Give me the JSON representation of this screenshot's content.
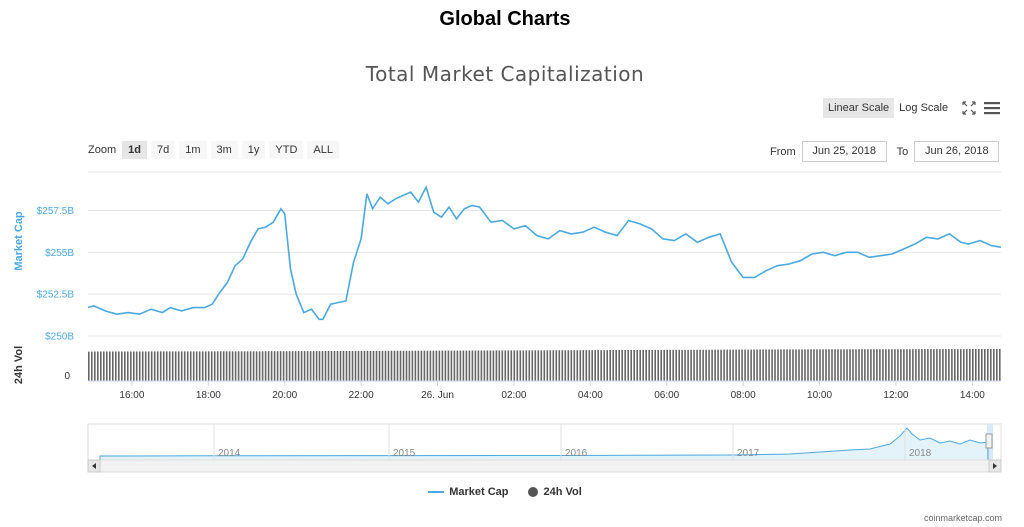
{
  "page": {
    "title": "Global Charts"
  },
  "chart_data": {
    "type": "line",
    "title": "Total Market Capitalization",
    "scale_options": [
      "Linear Scale",
      "Log Scale"
    ],
    "active_scale": "Linear Scale",
    "zoom": {
      "label": "Zoom",
      "options": [
        "1d",
        "7d",
        "1m",
        "3m",
        "1y",
        "YTD",
        "ALL"
      ],
      "active": "1d"
    },
    "range": {
      "from_label": "From",
      "from": "Jun 25, 2018",
      "to_label": "To",
      "to": "Jun 26, 2018"
    },
    "y_axis": {
      "label": "Market Cap",
      "ticks": [
        "$250B",
        "$252.5B",
        "$255B",
        "$257.5B"
      ],
      "tick_values": [
        250,
        252.5,
        255,
        257.5
      ],
      "ylim": [
        250,
        259.8
      ]
    },
    "vol_axis": {
      "label": "24h Vol",
      "ticks": [
        "0"
      ]
    },
    "x_axis": {
      "ticks": [
        "16:00",
        "18:00",
        "20:00",
        "22:00",
        "26. Jun",
        "02:00",
        "04:00",
        "06:00",
        "08:00",
        "10:00",
        "12:00",
        "14:00"
      ],
      "tick_hours": [
        16,
        18,
        20,
        22,
        24,
        26,
        28,
        30,
        32,
        34,
        36,
        38
      ],
      "xlim": [
        14.85,
        38.75
      ]
    },
    "series": [
      {
        "name": "Market Cap",
        "color": "#4aa9e0",
        "unit": "B USD",
        "hours": [
          14.85,
          15.0,
          15.3,
          15.6,
          15.9,
          16.2,
          16.5,
          16.8,
          17.0,
          17.3,
          17.6,
          17.9,
          18.1,
          18.3,
          18.5,
          18.7,
          18.9,
          19.1,
          19.3,
          19.5,
          19.7,
          19.9,
          20.0,
          20.15,
          20.3,
          20.5,
          20.7,
          20.9,
          21.0,
          21.2,
          21.4,
          21.6,
          21.8,
          22.0,
          22.15,
          22.3,
          22.5,
          22.7,
          22.9,
          23.1,
          23.3,
          23.5,
          23.7,
          23.9,
          24.1,
          24.3,
          24.5,
          24.7,
          24.9,
          25.1,
          25.4,
          25.7,
          26.0,
          26.3,
          26.6,
          26.9,
          27.2,
          27.5,
          27.8,
          28.1,
          28.4,
          28.7,
          29.0,
          29.3,
          29.6,
          29.9,
          30.2,
          30.5,
          30.8,
          31.1,
          31.4,
          31.7,
          32.0,
          32.3,
          32.6,
          32.9,
          33.2,
          33.5,
          33.8,
          34.1,
          34.4,
          34.7,
          35.0,
          35.3,
          35.6,
          35.9,
          36.2,
          36.5,
          36.8,
          37.1,
          37.4,
          37.7,
          37.9,
          38.2,
          38.5,
          38.75
        ],
        "values": [
          251.7,
          251.8,
          251.5,
          251.3,
          251.4,
          251.3,
          251.6,
          251.4,
          251.7,
          251.5,
          251.7,
          251.7,
          251.9,
          252.6,
          253.2,
          254.2,
          254.6,
          255.6,
          256.4,
          256.5,
          256.8,
          257.6,
          257.3,
          254.0,
          252.5,
          251.4,
          251.6,
          251.0,
          251.0,
          251.9,
          252.0,
          252.1,
          254.4,
          255.8,
          258.5,
          257.6,
          258.3,
          257.9,
          258.2,
          258.4,
          258.6,
          258.0,
          258.9,
          257.4,
          257.1,
          257.7,
          257.0,
          257.6,
          257.8,
          257.7,
          256.8,
          256.9,
          256.4,
          256.6,
          256.0,
          255.8,
          256.3,
          256.1,
          256.2,
          256.5,
          256.2,
          256.0,
          256.9,
          256.7,
          256.4,
          255.8,
          255.7,
          256.1,
          255.6,
          255.9,
          256.1,
          254.4,
          253.5,
          253.5,
          253.9,
          254.2,
          254.3,
          254.5,
          254.9,
          255.0,
          254.8,
          255.0,
          255.0,
          254.7,
          254.8,
          254.9,
          255.2,
          255.5,
          255.9,
          255.8,
          256.1,
          255.6,
          255.5,
          255.7,
          255.4,
          255.3
        ]
      },
      {
        "name": "24h Vol",
        "color": "#555555",
        "description_values": "daily trading volume bars at every interval, roughly constant with a slight upward drift",
        "values_relative": [
          0.92,
          0.93,
          0.95,
          0.97,
          0.99,
          1.0
        ]
      }
    ],
    "navigator": {
      "years": [
        "2014",
        "2015",
        "2016",
        "2017",
        "2018"
      ]
    },
    "legend": [
      "Market Cap",
      "24h Vol"
    ],
    "credit": "coinmarketcap.com"
  }
}
